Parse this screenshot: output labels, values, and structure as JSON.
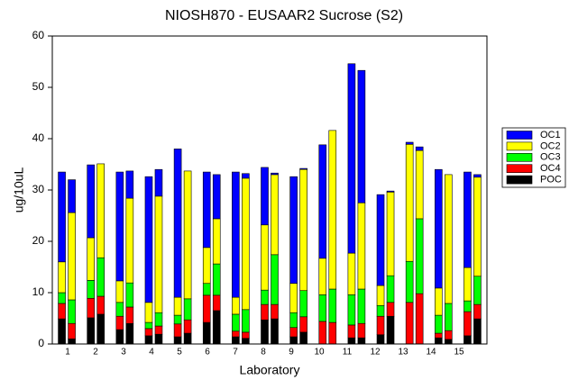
{
  "chart_data": {
    "type": "stacked_paired_bar",
    "title": "NIOSH870 - EUSAAR2 Sucrose (S2)",
    "x_label": "Laboratory",
    "y_label": "ug/10uL",
    "categories": [
      "1",
      "2",
      "3",
      "4",
      "5",
      "6",
      "7",
      "8",
      "9",
      "10",
      "11",
      "12",
      "13",
      "14",
      "15"
    ],
    "ylim": [
      0,
      60
    ],
    "yticks": [
      0,
      10,
      20,
      30,
      40,
      50,
      60
    ],
    "legend": "right",
    "series": [
      {
        "name": "POC",
        "color": "#000000",
        "values": [
          [
            4.9,
            1.0
          ],
          [
            5.1,
            5.8
          ],
          [
            2.8,
            4.0
          ],
          [
            1.6,
            1.9
          ],
          [
            1.4,
            2.1
          ],
          [
            4.2,
            6.5
          ],
          [
            1.4,
            1.1
          ],
          [
            4.7,
            4.9
          ],
          [
            1.4,
            2.3
          ],
          [
            0,
            0
          ],
          [
            1.2,
            1.2
          ],
          [
            1.8,
            5.4
          ],
          [
            0,
            0
          ],
          [
            1.2,
            0.9
          ],
          [
            1.6,
            4.9
          ]
        ]
      },
      {
        "name": "OC4",
        "color": "#ff0000",
        "values": [
          [
            3.0,
            3.0
          ],
          [
            3.8,
            3.5
          ],
          [
            2.6,
            3.2
          ],
          [
            1.4,
            1.6
          ],
          [
            2.5,
            2.6
          ],
          [
            5.3,
            3.0
          ],
          [
            1.1,
            1.2
          ],
          [
            3.0,
            2.8
          ],
          [
            1.8,
            3.0
          ],
          [
            4.4,
            4.2
          ],
          [
            2.5,
            2.8
          ],
          [
            3.6,
            2.7
          ],
          [
            8.1,
            9.8
          ],
          [
            0.9,
            1.7
          ],
          [
            4.7,
            2.8
          ]
        ]
      },
      {
        "name": "OC3",
        "color": "#00ff00",
        "values": [
          [
            2.1,
            4.6
          ],
          [
            3.5,
            7.5
          ],
          [
            2.7,
            4.7
          ],
          [
            1.2,
            2.6
          ],
          [
            1.7,
            4.1
          ],
          [
            2.3,
            6.1
          ],
          [
            3.3,
            4.4
          ],
          [
            2.8,
            9.7
          ],
          [
            2.9,
            5.1
          ],
          [
            5.2,
            6.5
          ],
          [
            5.9,
            6.7
          ],
          [
            2.1,
            5.2
          ],
          [
            8.0,
            14.6
          ],
          [
            3.5,
            5.3
          ],
          [
            2.1,
            5.5
          ]
        ]
      },
      {
        "name": "OC2",
        "color": "#ffff00",
        "values": [
          [
            6.0,
            17.0
          ],
          [
            8.3,
            18.3
          ],
          [
            4.2,
            16.5
          ],
          [
            3.9,
            22.7
          ],
          [
            3.5,
            24.9
          ],
          [
            7.0,
            8.8
          ],
          [
            3.3,
            25.6
          ],
          [
            12.7,
            15.6
          ],
          [
            5.7,
            23.6
          ],
          [
            7.1,
            30.9
          ],
          [
            8.1,
            16.8
          ],
          [
            3.9,
            16.3
          ],
          [
            22.8,
            13.3
          ],
          [
            5.3,
            25.1
          ],
          [
            6.5,
            19.3
          ]
        ]
      },
      {
        "name": "OC1",
        "color": "#0000ff",
        "values": [
          [
            17.5,
            6.4
          ],
          [
            14.2,
            0
          ],
          [
            21.2,
            5.3
          ],
          [
            24.5,
            5.2
          ],
          [
            28.9,
            0
          ],
          [
            14.7,
            8.6
          ],
          [
            24.4,
            0.9
          ],
          [
            11.2,
            0.3
          ],
          [
            20.8,
            0.2
          ],
          [
            22.1,
            0
          ],
          [
            36.9,
            25.8
          ],
          [
            17.7,
            0.2
          ],
          [
            0.4,
            0.7
          ],
          [
            23.1,
            0
          ],
          [
            18.6,
            0.5
          ]
        ]
      }
    ]
  }
}
